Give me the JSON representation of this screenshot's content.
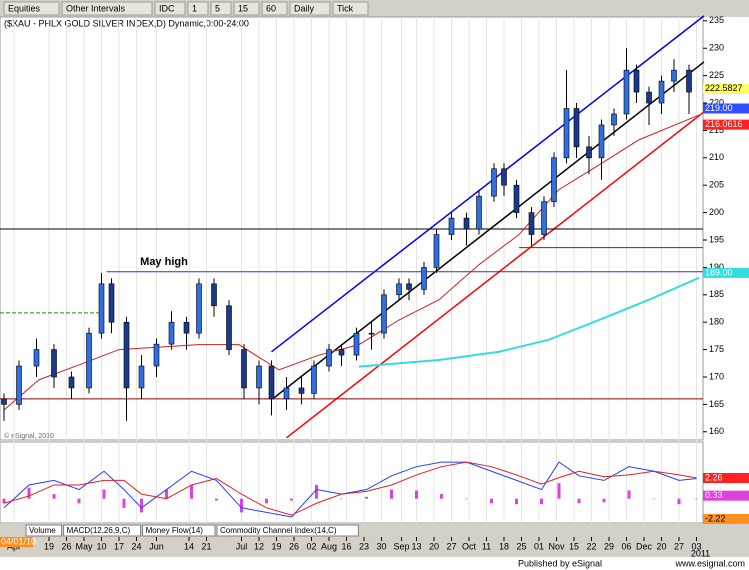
{
  "toolbar": {
    "items": [
      "Equities",
      "Other Intervals",
      "IDC",
      "1",
      "5",
      "15",
      "60",
      "Daily",
      "Tick"
    ]
  },
  "tabs": [
    "Volume",
    "MACD(12,26,9,C)",
    "Money Flow(14)",
    "Commodity Channel Index(14,C)"
  ],
  "footer": {
    "left": "Published by eSignal",
    "right": "www.esignal.com"
  },
  "chart_data": {
    "type": "candlestick",
    "title": "($XAU - PHLX GOLD SILVER INDEX,D) Dynamic,0:00-24:00",
    "copyright": "© eSignal, 2010",
    "up_color": "#2f6fe0",
    "down_color": "#1b3a8c",
    "xlim": [
      -1.6,
      279.6
    ],
    "ylim": [
      158.5,
      235.7
    ],
    "yticks": [
      160,
      165,
      170,
      175,
      180,
      185,
      190,
      195,
      200,
      205,
      210,
      215,
      220,
      225,
      230,
      235
    ],
    "start_date": "04/01/10",
    "year_label": {
      "value": 277,
      "label": "2011"
    },
    "xticks": [
      {
        "value": 4,
        "label": "Apr"
      },
      {
        "value": 18,
        "label": "19"
      },
      {
        "value": 25,
        "label": "26"
      },
      {
        "value": 32,
        "label": "May"
      },
      {
        "value": 39,
        "label": "10"
      },
      {
        "value": 46,
        "label": "17"
      },
      {
        "value": 53,
        "label": "24"
      },
      {
        "value": 61,
        "label": "Jun"
      },
      {
        "value": 74,
        "label": "14"
      },
      {
        "value": 81,
        "label": "21"
      },
      {
        "value": 95,
        "label": "Jul"
      },
      {
        "value": 102,
        "label": "12"
      },
      {
        "value": 109,
        "label": "19"
      },
      {
        "value": 116,
        "label": "26"
      },
      {
        "value": 123,
        "label": "02"
      },
      {
        "value": 130,
        "label": "Aug"
      },
      {
        "value": 137,
        "label": "16"
      },
      {
        "value": 144,
        "label": "23"
      },
      {
        "value": 151,
        "label": "30"
      },
      {
        "value": 159,
        "label": "Sep"
      },
      {
        "value": 165,
        "label": "13"
      },
      {
        "value": 172,
        "label": "20"
      },
      {
        "value": 179,
        "label": "27"
      },
      {
        "value": 186,
        "label": "Oct"
      },
      {
        "value": 193,
        "label": "11"
      },
      {
        "value": 200,
        "label": "18"
      },
      {
        "value": 207,
        "label": "25"
      },
      {
        "value": 214,
        "label": "01"
      },
      {
        "value": 221,
        "label": "Nov"
      },
      {
        "value": 228,
        "label": "15"
      },
      {
        "value": 235,
        "label": "22"
      },
      {
        "value": 242,
        "label": "29"
      },
      {
        "value": 249,
        "label": "06"
      },
      {
        "value": 256,
        "label": "Dec"
      },
      {
        "value": 263,
        "label": "20"
      },
      {
        "value": 270,
        "label": "27"
      },
      {
        "value": 277,
        "label": "03"
      }
    ],
    "candles": [
      [
        0,
        166,
        167,
        162,
        165
      ],
      [
        6,
        165,
        173,
        164,
        172
      ],
      [
        13,
        172,
        177,
        170,
        175
      ],
      [
        20,
        175,
        176,
        168,
        170
      ],
      [
        27,
        170,
        171,
        166,
        168
      ],
      [
        34,
        168,
        179,
        167,
        178
      ],
      [
        39,
        178,
        189,
        177,
        187
      ],
      [
        43,
        187,
        188,
        178,
        180
      ],
      [
        49,
        180,
        181,
        162,
        168
      ],
      [
        55,
        168,
        174,
        166,
        172
      ],
      [
        61,
        172,
        177,
        170,
        176
      ],
      [
        67,
        176,
        182,
        175,
        180
      ],
      [
        73,
        180,
        181,
        175,
        178
      ],
      [
        78,
        178,
        188,
        177,
        187
      ],
      [
        84,
        187,
        188,
        181,
        183
      ],
      [
        90,
        183,
        184,
        174,
        175
      ],
      [
        96,
        175,
        176,
        166,
        168
      ],
      [
        102,
        168,
        173,
        165,
        172
      ],
      [
        107,
        172,
        173,
        163,
        166
      ],
      [
        113,
        166,
        170,
        164,
        168
      ],
      [
        119,
        168,
        170,
        165,
        167
      ],
      [
        124,
        167,
        173,
        166,
        172
      ],
      [
        130,
        172,
        176,
        171,
        175
      ],
      [
        135,
        175,
        176,
        172,
        174
      ],
      [
        141,
        174,
        179,
        173,
        178
      ],
      [
        147,
        178,
        180,
        175,
        178
      ],
      [
        152,
        178,
        186,
        177,
        185
      ],
      [
        158,
        185,
        188,
        184,
        187
      ],
      [
        162,
        187,
        188,
        184,
        186
      ],
      [
        168,
        186,
        191,
        185,
        190
      ],
      [
        173,
        190,
        197,
        189,
        196
      ],
      [
        179,
        196,
        200,
        195,
        199
      ],
      [
        185,
        199,
        200,
        194,
        197
      ],
      [
        190,
        197,
        204,
        196,
        203
      ],
      [
        196,
        203,
        209,
        202,
        208
      ],
      [
        200,
        208,
        209,
        203,
        205
      ],
      [
        205,
        205,
        206,
        199,
        200
      ],
      [
        211,
        200,
        201,
        194,
        196
      ],
      [
        216,
        196,
        203,
        195,
        202
      ],
      [
        220,
        202,
        211,
        201,
        210
      ],
      [
        225,
        210,
        226,
        209,
        219
      ],
      [
        229,
        219,
        220,
        210,
        212
      ],
      [
        234,
        212,
        214,
        207,
        210
      ],
      [
        239,
        210,
        217,
        206,
        216
      ],
      [
        244,
        216,
        219,
        214,
        218
      ],
      [
        249,
        218,
        230,
        217,
        226
      ],
      [
        253,
        226,
        227,
        220,
        222
      ],
      [
        258,
        222,
        223,
        216,
        220
      ],
      [
        263,
        220,
        225,
        218,
        224
      ],
      [
        268,
        224,
        228,
        222,
        226
      ],
      [
        274,
        226,
        227,
        218,
        222
      ]
    ],
    "lines": [
      {
        "color": "#0000ff",
        "width": 1.5,
        "points": [
          [
            107,
            174.6
          ],
          [
            280,
            235.9
          ]
        ]
      },
      {
        "color": "#000000",
        "width": 1.5,
        "points": [
          [
            108,
            166.2
          ],
          [
            280,
            227.5
          ]
        ]
      },
      {
        "color": "#ff0000",
        "width": 1.5,
        "points": [
          [
            113,
            158.9
          ],
          [
            280,
            218.4
          ]
        ]
      },
      {
        "color": "#000000",
        "width": 1,
        "points": [
          [
            -1.6,
            197
          ],
          [
            279.6,
            197
          ]
        ]
      },
      {
        "color": "#cc0000",
        "width": 1,
        "points": [
          [
            206,
            193.6
          ],
          [
            279.6,
            193.6
          ]
        ]
      },
      {
        "color": "#3030c0",
        "width": 1,
        "points": [
          [
            41,
            189.2
          ],
          [
            279.6,
            189.2
          ]
        ]
      },
      {
        "color": "#8b0000",
        "width": 1,
        "points": [
          [
            -1.6,
            166
          ],
          [
            279.6,
            166
          ]
        ]
      },
      {
        "color": "#00a000",
        "width": 1,
        "dashed": true,
        "points": [
          [
            -1.6,
            181.7
          ],
          [
            40,
            181.7
          ]
        ]
      },
      {
        "color": "#33dddd",
        "width": 2,
        "points": [
          [
            142,
            171.9
          ],
          [
            174,
            173.1
          ],
          [
            198,
            174.6
          ],
          [
            218,
            176.8
          ],
          [
            238,
            180.4
          ],
          [
            258,
            184.1
          ],
          [
            278,
            188.1
          ]
        ]
      },
      {
        "color": "#cc2020",
        "width": 1,
        "points": [
          [
            0,
            164
          ],
          [
            14,
            169.5
          ],
          [
            30,
            172.2
          ],
          [
            46,
            175
          ],
          [
            78,
            175.9
          ],
          [
            94,
            175.9
          ],
          [
            110,
            171.3
          ],
          [
            126,
            174
          ],
          [
            142,
            175.9
          ],
          [
            158,
            180.4
          ],
          [
            174,
            184.1
          ],
          [
            190,
            190.5
          ],
          [
            206,
            196
          ],
          [
            222,
            204.2
          ],
          [
            238,
            208.7
          ],
          [
            254,
            213.3
          ],
          [
            278,
            217.8
          ]
        ]
      }
    ],
    "annotations": [
      {
        "text": "May high",
        "x": 64,
        "y": 191
      }
    ],
    "price_tags": [
      {
        "value": 222.5827,
        "color": "#ffff66",
        "text_color": "#000000"
      },
      {
        "value": 219,
        "label": "219.00",
        "color": "#3050ff",
        "text_color": "#ffffff"
      },
      {
        "value": 216.0616,
        "color": "#ff2020",
        "text_color": "#ffffff"
      },
      {
        "value": 189,
        "label": "189.00",
        "color": "#33dddd",
        "text_color": "#ffffff"
      }
    ],
    "macd": {
      "ylim": [
        -2.55,
        6.2
      ],
      "macd_color": "#2040ff",
      "signal_color": "#e02020",
      "hist_color": "#e040e0",
      "macd_line": [
        [
          0,
          -1
        ],
        [
          10,
          1.5
        ],
        [
          20,
          2
        ],
        [
          30,
          1
        ],
        [
          40,
          3
        ],
        [
          48,
          1
        ],
        [
          55,
          -1
        ],
        [
          65,
          1
        ],
        [
          75,
          3
        ],
        [
          85,
          2
        ],
        [
          95,
          -1
        ],
        [
          105,
          -1.5
        ],
        [
          115,
          -2
        ],
        [
          125,
          1
        ],
        [
          135,
          0.5
        ],
        [
          145,
          1
        ],
        [
          155,
          2.5
        ],
        [
          165,
          3.5
        ],
        [
          175,
          4
        ],
        [
          185,
          4
        ],
        [
          195,
          3
        ],
        [
          205,
          2
        ],
        [
          215,
          1
        ],
        [
          222,
          4
        ],
        [
          230,
          2.5
        ],
        [
          240,
          2
        ],
        [
          250,
          3.5
        ],
        [
          260,
          3
        ],
        [
          270,
          2
        ],
        [
          277,
          2.2
        ]
      ],
      "signal_line": [
        [
          0,
          -0.5
        ],
        [
          10,
          0.3
        ],
        [
          20,
          1.5
        ],
        [
          30,
          1.5
        ],
        [
          40,
          2
        ],
        [
          48,
          2
        ],
        [
          55,
          0.5
        ],
        [
          65,
          0
        ],
        [
          75,
          1.5
        ],
        [
          85,
          2.2
        ],
        [
          95,
          0.5
        ],
        [
          105,
          -1
        ],
        [
          115,
          -1.8
        ],
        [
          125,
          -0.5
        ],
        [
          135,
          0.5
        ],
        [
          145,
          0.8
        ],
        [
          155,
          1.5
        ],
        [
          165,
          2.6
        ],
        [
          175,
          3.5
        ],
        [
          185,
          4
        ],
        [
          195,
          3.5
        ],
        [
          205,
          2.6
        ],
        [
          215,
          1.6
        ],
        [
          222,
          2.3
        ],
        [
          230,
          3
        ],
        [
          240,
          2.4
        ],
        [
          250,
          2.6
        ],
        [
          260,
          3
        ],
        [
          270,
          2.6
        ],
        [
          277,
          2.26
        ]
      ],
      "histogram": [
        [
          0,
          -0.5
        ],
        [
          10,
          1.2
        ],
        [
          20,
          0.5
        ],
        [
          30,
          -0.5
        ],
        [
          40,
          1
        ],
        [
          48,
          -1
        ],
        [
          55,
          -1.5
        ],
        [
          65,
          1
        ],
        [
          75,
          1.5
        ],
        [
          85,
          -0.2
        ],
        [
          95,
          -1.5
        ],
        [
          105,
          -0.5
        ],
        [
          115,
          -0.2
        ],
        [
          125,
          1.5
        ],
        [
          135,
          0
        ],
        [
          145,
          0.2
        ],
        [
          155,
          1
        ],
        [
          165,
          0.9
        ],
        [
          175,
          0.5
        ],
        [
          185,
          0
        ],
        [
          195,
          -0.5
        ],
        [
          205,
          -0.6
        ],
        [
          215,
          -0.6
        ],
        [
          222,
          1.7
        ],
        [
          230,
          -0.5
        ],
        [
          240,
          -0.4
        ],
        [
          250,
          0.9
        ],
        [
          260,
          0
        ],
        [
          270,
          -0.6
        ],
        [
          277,
          -0.06
        ]
      ],
      "tags": [
        {
          "value": 2.26,
          "color": "#ff2020",
          "text_color": "#ffffff"
        },
        {
          "value": 0.33,
          "color": "#e040e0",
          "text_color": "#ffffff"
        },
        {
          "value": -2.22,
          "color": "#ff9020",
          "text_color": "#000000"
        }
      ]
    }
  }
}
